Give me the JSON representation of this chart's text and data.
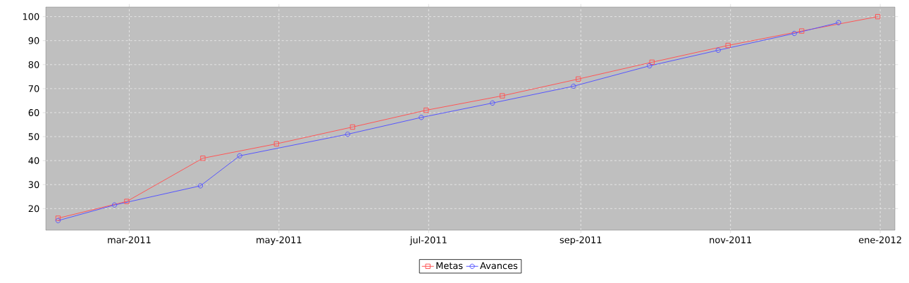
{
  "chart_data": {
    "type": "line",
    "xlim": [
      "2011-01-26",
      "2012-01-07"
    ],
    "xticks": [
      {
        "value": "2011-03-01",
        "label": "mar-2011"
      },
      {
        "value": "2011-05-01",
        "label": "may-2011"
      },
      {
        "value": "2011-07-01",
        "label": "jul-2011"
      },
      {
        "value": "2011-09-01",
        "label": "sep-2011"
      },
      {
        "value": "2011-11-01",
        "label": "nov-2011"
      },
      {
        "value": "2012-01-01",
        "label": "ene-2012"
      }
    ],
    "ylim": [
      11,
      104
    ],
    "yticks": [
      20,
      30,
      40,
      50,
      60,
      70,
      80,
      90,
      100
    ],
    "grid": true,
    "legend": "bottom",
    "series": [
      {
        "name": "Metas",
        "color": "#ff5555",
        "marker": "square",
        "x": [
          "2011-01-31",
          "2011-02-28",
          "2011-03-31",
          "2011-04-30",
          "2011-05-31",
          "2011-06-30",
          "2011-07-31",
          "2011-08-31",
          "2011-09-30",
          "2011-10-31",
          "2011-11-30",
          "2011-12-31"
        ],
        "values": [
          16,
          23,
          41,
          47,
          54,
          61,
          67,
          74,
          81,
          88,
          94,
          100
        ]
      },
      {
        "name": "Avances",
        "color": "#5555ff",
        "marker": "circle",
        "x": [
          "2011-01-31",
          "2011-02-23",
          "2011-03-30",
          "2011-04-15",
          "2011-05-29",
          "2011-06-28",
          "2011-07-27",
          "2011-08-29",
          "2011-09-29",
          "2011-10-27",
          "2011-11-27",
          "2011-12-15"
        ],
        "values": [
          15,
          21.5,
          29.5,
          42,
          51,
          58,
          64,
          71,
          79.5,
          86,
          93,
          97.5
        ]
      }
    ]
  }
}
